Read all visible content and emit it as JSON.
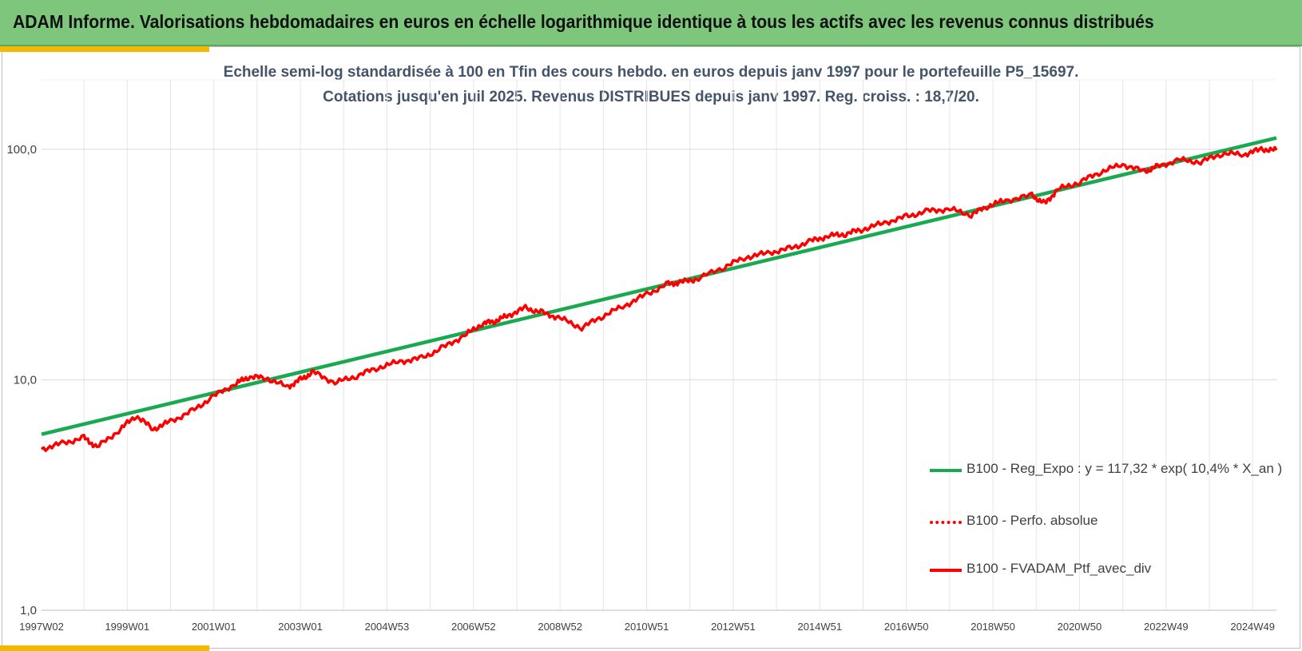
{
  "header": {
    "title": "ADAM Informe. Valorisations hebdomadaires en euros en échelle logarithmique identique à tous les actifs avec les revenus connus distribués"
  },
  "colors": {
    "header_bg": "#7dc67b",
    "accent": "#f5b800",
    "regression": "#1aa850",
    "portfolio": "#ff0000",
    "title_text": "#44546a"
  },
  "chart_data": {
    "type": "line",
    "title": "Echelle semi-log standardisée à 100 en Tfin des cours hebdo.  en euros depuis janv 1997 pour le portefeuille P5_15697.",
    "subtitle": "Cotations jusqu'en juil 2025. Revenus DISTRIBUES depuis janv 1997. Reg. croiss. : 18,7/20.",
    "xlabel": "",
    "ylabel": "",
    "y_scale": "log",
    "ylim": [
      1,
      200
    ],
    "y_ticks": [
      1,
      10,
      100
    ],
    "y_tick_labels": [
      "1,0",
      "10,0",
      "100,0"
    ],
    "x_range": [
      1997.02,
      2025.55
    ],
    "x_tick_labels": [
      "1997W02",
      "1999W01",
      "2001W01",
      "2003W01",
      "2004W53",
      "2006W52",
      "2008W52",
      "2010W51",
      "2012W51",
      "2014W51",
      "2016W50",
      "2018W50",
      "2020W50",
      "2022W49",
      "2024W49"
    ],
    "x_tick_years": [
      1997.02,
      1999.0,
      2001.0,
      2003.0,
      2005.0,
      2007.0,
      2009.0,
      2011.0,
      2013.0,
      2015.0,
      2017.0,
      2019.0,
      2021.0,
      2023.0,
      2025.0
    ],
    "grid": true,
    "legend_position": "bottom-right",
    "legend": [
      "B100 - Reg_Expo : y = 117,32 * exp( 10,4% *  X_an )",
      "B100 - Perfo. absolue",
      "B100 - FVADAM_Ptf_avec_div"
    ],
    "series": [
      {
        "name": "B100 - Reg_Expo : y = 117,32 * exp( 10,4% *  X_an )",
        "style": "solid",
        "x": [
          1997.02,
          2025.55
        ],
        "values": [
          5.8,
          112
        ]
      },
      {
        "name": "B100 - FVADAM_Ptf_avec_div",
        "style": "solid",
        "x": [
          1997.02,
          1997.5,
          1998.0,
          1998.3,
          1998.8,
          1999.2,
          1999.6,
          2000.0,
          2000.5,
          2001.0,
          2001.5,
          2001.8,
          2002.2,
          2002.7,
          2003.0,
          2003.3,
          2003.8,
          2004.3,
          2004.8,
          2005.3,
          2005.8,
          2006.3,
          2006.8,
          2007.2,
          2007.5,
          2007.8,
          2008.2,
          2008.6,
          2009.0,
          2009.5,
          2010.0,
          2010.5,
          2011.0,
          2011.5,
          2011.8,
          2012.2,
          2012.8,
          2013.3,
          2013.8,
          2014.3,
          2014.8,
          2015.2,
          2015.6,
          2016.0,
          2016.5,
          2017.0,
          2017.5,
          2018.0,
          2018.5,
          2018.9,
          2019.3,
          2019.9,
          2020.2,
          2020.5,
          2021.0,
          2021.5,
          2022.0,
          2022.5,
          2022.8,
          2023.3,
          2023.8,
          2024.3,
          2024.8,
          2025.2,
          2025.55
        ],
        "values": [
          5.0,
          5.3,
          5.6,
          5.1,
          6.0,
          7.0,
          6.1,
          6.6,
          7.3,
          8.5,
          9.6,
          10.3,
          10.2,
          9.3,
          10.0,
          10.8,
          9.7,
          10.4,
          11.3,
          12.0,
          12.4,
          13.8,
          15.6,
          17.5,
          18.0,
          19.0,
          20.5,
          19.5,
          18.5,
          16.8,
          19.0,
          21.0,
          23.5,
          26.0,
          26.5,
          27.5,
          31.0,
          34.0,
          35.5,
          37.0,
          40.0,
          42.0,
          43.0,
          45.0,
          48.0,
          51.0,
          54.0,
          55.0,
          52.0,
          57.0,
          60.0,
          63.0,
          58.0,
          67.0,
          72.0,
          80.0,
          86.0,
          80.0,
          84.0,
          90.0,
          88.0,
          96.0,
          95.0,
          100.0,
          99.0
        ]
      }
    ]
  }
}
